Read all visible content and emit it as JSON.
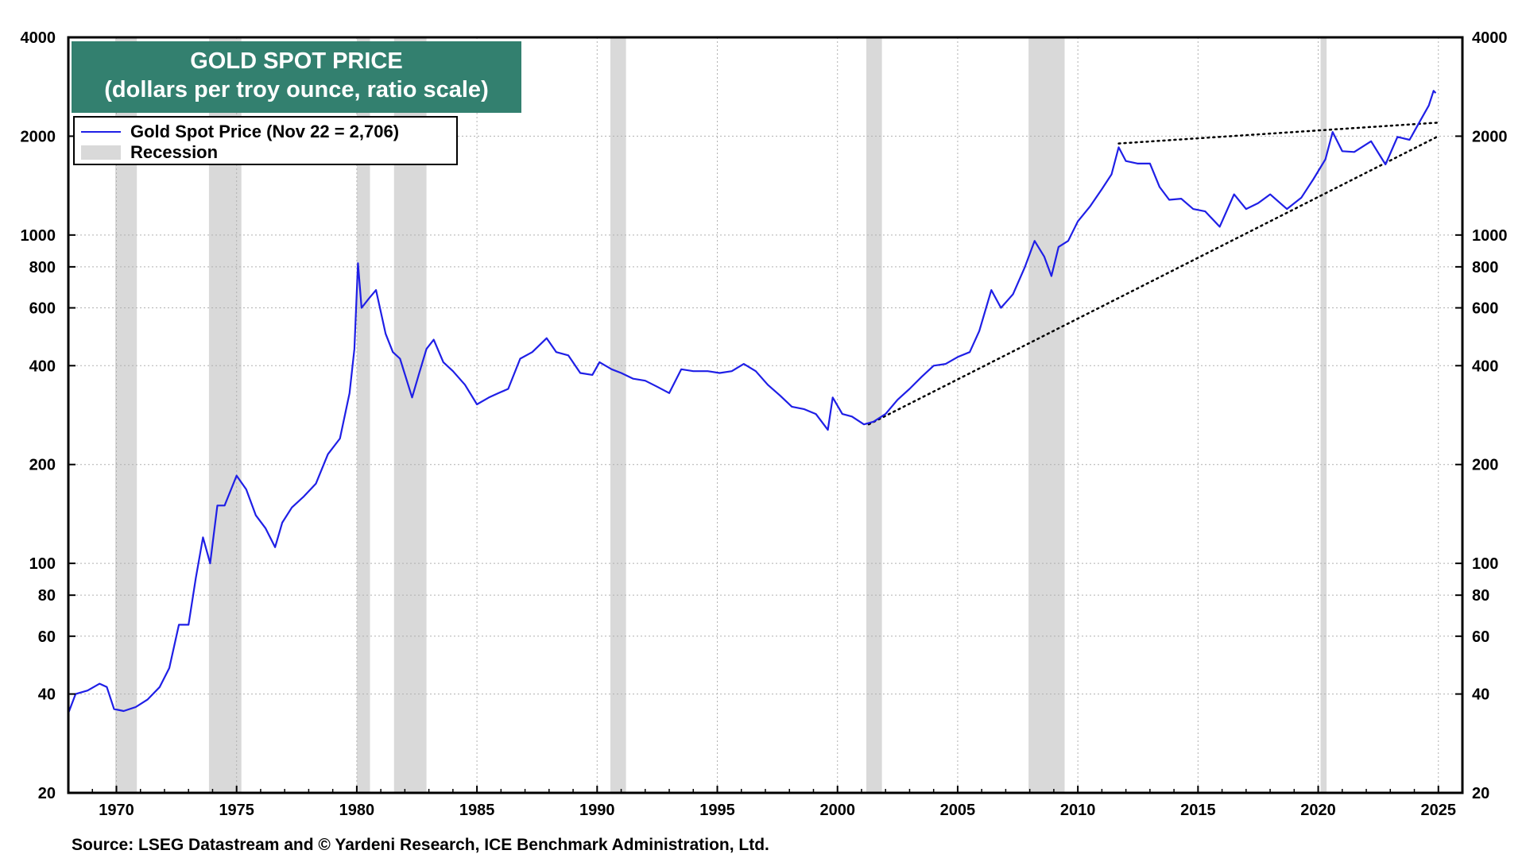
{
  "chart_data": {
    "type": "line",
    "title": "GOLD SPOT PRICE",
    "subtitle": "(dollars per troy ounce, ratio scale)",
    "y_scale": "log",
    "ylim": [
      20,
      4000
    ],
    "xlim": [
      1968.0,
      2026.0
    ],
    "y_ticks": [
      20,
      40,
      60,
      80,
      100,
      200,
      400,
      600,
      800,
      1000,
      2000,
      4000
    ],
    "y_tick_labels": [
      "20",
      "40",
      "60",
      "80",
      "100",
      "200",
      "400",
      "600",
      "800",
      "1000",
      "2000",
      "4000"
    ],
    "x_ticks": [
      1970,
      1975,
      1980,
      1985,
      1990,
      1995,
      2000,
      2005,
      2010,
      2015,
      2020,
      2025
    ],
    "x_tick_labels": [
      "1970",
      "1975",
      "1980",
      "1985",
      "1990",
      "1995",
      "2000",
      "2005",
      "2010",
      "2015",
      "2020",
      "2025"
    ],
    "grid": "vertical dotted lines at x ticks, horizontal dotted lines at y ticks",
    "legend_position": "top-left",
    "series": [
      {
        "name": "Gold Spot Price (Nov 22 = 2,706)",
        "color": "#1f1fe6",
        "points": [
          [
            1968.0,
            35
          ],
          [
            1968.3,
            40
          ],
          [
            1968.8,
            41
          ],
          [
            1969.3,
            43
          ],
          [
            1969.6,
            42
          ],
          [
            1969.9,
            36
          ],
          [
            1970.3,
            35.5
          ],
          [
            1970.8,
            36.5
          ],
          [
            1971.3,
            38.5
          ],
          [
            1971.8,
            42
          ],
          [
            1972.2,
            48
          ],
          [
            1972.6,
            65
          ],
          [
            1973.0,
            65
          ],
          [
            1973.3,
            90
          ],
          [
            1973.6,
            120
          ],
          [
            1973.9,
            100
          ],
          [
            1974.2,
            150
          ],
          [
            1974.5,
            150
          ],
          [
            1974.8,
            170
          ],
          [
            1975.0,
            185
          ],
          [
            1975.4,
            168
          ],
          [
            1975.8,
            140
          ],
          [
            1976.2,
            128
          ],
          [
            1976.6,
            112
          ],
          [
            1976.9,
            133
          ],
          [
            1977.3,
            148
          ],
          [
            1977.8,
            160
          ],
          [
            1978.3,
            175
          ],
          [
            1978.8,
            215
          ],
          [
            1979.3,
            240
          ],
          [
            1979.7,
            330
          ],
          [
            1979.9,
            450
          ],
          [
            1980.05,
            820
          ],
          [
            1980.2,
            600
          ],
          [
            1980.5,
            640
          ],
          [
            1980.8,
            680
          ],
          [
            1981.2,
            500
          ],
          [
            1981.5,
            440
          ],
          [
            1981.8,
            420
          ],
          [
            1982.3,
            320
          ],
          [
            1982.6,
            380
          ],
          [
            1982.9,
            450
          ],
          [
            1983.2,
            480
          ],
          [
            1983.6,
            410
          ],
          [
            1984.0,
            385
          ],
          [
            1984.5,
            350
          ],
          [
            1985.0,
            305
          ],
          [
            1985.5,
            320
          ],
          [
            1985.9,
            330
          ],
          [
            1986.3,
            340
          ],
          [
            1986.8,
            420
          ],
          [
            1987.3,
            440
          ],
          [
            1987.9,
            485
          ],
          [
            1988.3,
            440
          ],
          [
            1988.8,
            430
          ],
          [
            1989.3,
            380
          ],
          [
            1989.8,
            375
          ],
          [
            1990.1,
            410
          ],
          [
            1990.6,
            390
          ],
          [
            1991.0,
            380
          ],
          [
            1991.5,
            365
          ],
          [
            1992.0,
            360
          ],
          [
            1992.5,
            345
          ],
          [
            1993.0,
            330
          ],
          [
            1993.5,
            390
          ],
          [
            1994.0,
            385
          ],
          [
            1994.6,
            385
          ],
          [
            1995.1,
            380
          ],
          [
            1995.6,
            385
          ],
          [
            1996.1,
            405
          ],
          [
            1996.6,
            385
          ],
          [
            1997.1,
            350
          ],
          [
            1997.6,
            325
          ],
          [
            1998.1,
            300
          ],
          [
            1998.6,
            295
          ],
          [
            1999.1,
            285
          ],
          [
            1999.6,
            255
          ],
          [
            1999.8,
            320
          ],
          [
            2000.2,
            285
          ],
          [
            2000.6,
            280
          ],
          [
            2001.1,
            265
          ],
          [
            2001.5,
            270
          ],
          [
            2002.0,
            285
          ],
          [
            2002.5,
            315
          ],
          [
            2003.0,
            340
          ],
          [
            2003.5,
            370
          ],
          [
            2004.0,
            400
          ],
          [
            2004.5,
            405
          ],
          [
            2005.0,
            425
          ],
          [
            2005.5,
            440
          ],
          [
            2005.9,
            510
          ],
          [
            2006.4,
            680
          ],
          [
            2006.8,
            600
          ],
          [
            2007.3,
            660
          ],
          [
            2007.8,
            800
          ],
          [
            2008.2,
            960
          ],
          [
            2008.6,
            860
          ],
          [
            2008.9,
            750
          ],
          [
            2009.2,
            920
          ],
          [
            2009.6,
            960
          ],
          [
            2010.0,
            1100
          ],
          [
            2010.5,
            1220
          ],
          [
            2011.0,
            1380
          ],
          [
            2011.4,
            1530
          ],
          [
            2011.7,
            1850
          ],
          [
            2012.0,
            1680
          ],
          [
            2012.5,
            1650
          ],
          [
            2013.0,
            1650
          ],
          [
            2013.4,
            1400
          ],
          [
            2013.8,
            1280
          ],
          [
            2014.3,
            1290
          ],
          [
            2014.8,
            1200
          ],
          [
            2015.3,
            1180
          ],
          [
            2015.9,
            1060
          ],
          [
            2016.5,
            1330
          ],
          [
            2017.0,
            1200
          ],
          [
            2017.5,
            1250
          ],
          [
            2018.0,
            1330
          ],
          [
            2018.7,
            1200
          ],
          [
            2019.3,
            1300
          ],
          [
            2019.8,
            1480
          ],
          [
            2020.3,
            1700
          ],
          [
            2020.6,
            2060
          ],
          [
            2021.0,
            1800
          ],
          [
            2021.5,
            1790
          ],
          [
            2022.2,
            1930
          ],
          [
            2022.8,
            1640
          ],
          [
            2023.3,
            1990
          ],
          [
            2023.8,
            1950
          ],
          [
            2024.2,
            2200
          ],
          [
            2024.6,
            2480
          ],
          [
            2024.8,
            2750
          ],
          [
            2024.89,
            2706
          ]
        ]
      }
    ],
    "recessions": [
      [
        1969.95,
        1970.85
      ],
      [
        1973.85,
        1975.2
      ],
      [
        1980.0,
        1980.55
      ],
      [
        1981.55,
        1982.9
      ],
      [
        1990.55,
        1991.2
      ],
      [
        2001.2,
        2001.85
      ],
      [
        2007.95,
        2009.45
      ],
      [
        2020.1,
        2020.35
      ]
    ],
    "recession_label": "Recession",
    "trendlines": [
      {
        "points": [
          [
            2011.7,
            1900
          ],
          [
            2025.0,
            2200
          ]
        ],
        "style": "dotted"
      },
      {
        "points": [
          [
            2001.3,
            265
          ],
          [
            2025.0,
            2000
          ]
        ],
        "style": "dotted"
      }
    ],
    "source": "Source: LSEG Datastream and © Yardeni Research, ICE Benchmark Administration, Ltd.",
    "colors": {
      "title_bg": "#33806f",
      "title_text": "#ffffff",
      "line": "#1f1fe6",
      "recession": "#d9d9d9",
      "trendline": "#000000"
    }
  }
}
